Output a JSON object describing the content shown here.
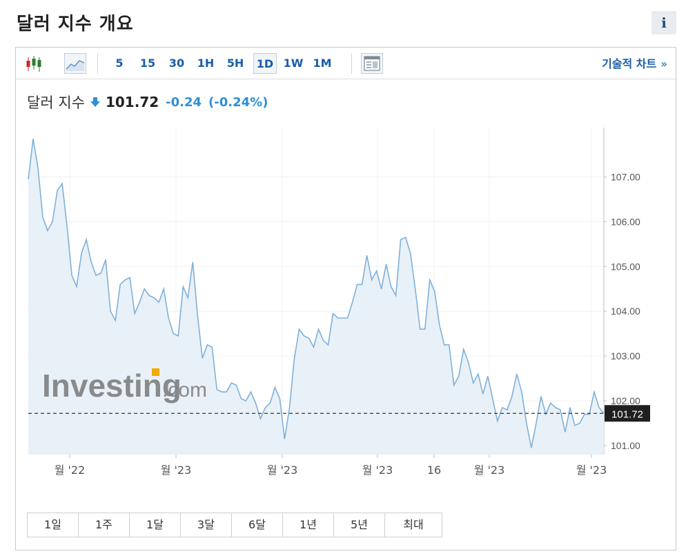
{
  "page": {
    "title": "달러 지수 개요",
    "info_label": "i"
  },
  "toolbar": {
    "candles_icon": "candlestick-icon",
    "line_icon": "line-chart-icon",
    "periods": [
      "5",
      "15",
      "30",
      "1H",
      "5H",
      "1D",
      "1W",
      "1M"
    ],
    "active_period": "1D",
    "layout_icon": "chart-layout-icon",
    "tech_chart_label": "기술적 차트",
    "tech_chart_arrow": "»"
  },
  "quote": {
    "name": "달러 지수",
    "direction": "down",
    "price": "101.72",
    "change": "-0.24",
    "change_pct": "(-0.24%)",
    "down_color": "#2d8fd5"
  },
  "watermark": {
    "brand": "Investing",
    "suffix": ".com"
  },
  "range_buttons": [
    "1일",
    "1주",
    "1달",
    "3달",
    "6달",
    "1년",
    "5년",
    "최대"
  ],
  "chart_data": {
    "type": "area",
    "ylim": [
      100.8,
      108.1
    ],
    "y_ticks": [
      "107.00",
      "106.00",
      "105.00",
      "104.00",
      "103.00",
      "102.00",
      "101.00"
    ],
    "x_labels": [
      "월 '22",
      "월 '23",
      "월 '23",
      "월 '23",
      "16",
      "월 '23",
      "월 '23"
    ],
    "current_value": 101.72,
    "current_label": "101.72",
    "line_color": "#7fb0d8",
    "fill_color": "#e4eef7",
    "values": [
      106.95,
      107.85,
      107.2,
      106.1,
      105.8,
      106.0,
      106.7,
      106.85,
      105.9,
      104.8,
      104.55,
      105.3,
      105.6,
      105.1,
      104.8,
      104.85,
      105.15,
      104.0,
      103.8,
      104.6,
      104.7,
      104.75,
      103.95,
      104.2,
      104.5,
      104.35,
      104.3,
      104.2,
      104.5,
      103.85,
      103.5,
      103.45,
      104.55,
      104.3,
      105.1,
      103.9,
      102.95,
      103.25,
      103.2,
      102.25,
      102.2,
      102.2,
      102.4,
      102.35,
      102.05,
      102.0,
      102.2,
      101.95,
      101.6,
      101.85,
      101.95,
      102.3,
      102.05,
      101.15,
      101.85,
      102.95,
      103.6,
      103.45,
      103.4,
      103.2,
      103.6,
      103.35,
      103.25,
      103.95,
      103.85,
      103.85,
      103.85,
      104.2,
      104.6,
      104.6,
      105.25,
      104.7,
      104.9,
      104.5,
      105.05,
      104.55,
      104.35,
      105.6,
      105.65,
      105.3,
      104.5,
      103.6,
      103.6,
      104.7,
      104.45,
      103.7,
      103.25,
      103.25,
      102.35,
      102.55,
      103.15,
      102.85,
      102.4,
      102.6,
      102.15,
      102.55,
      102.05,
      101.55,
      101.85,
      101.8,
      102.1,
      102.6,
      102.2,
      101.5,
      100.95,
      101.5,
      102.1,
      101.7,
      101.95,
      101.85,
      101.8,
      101.3,
      101.85,
      101.45,
      101.5,
      101.7,
      101.7,
      102.2,
      101.85,
      101.72
    ]
  }
}
